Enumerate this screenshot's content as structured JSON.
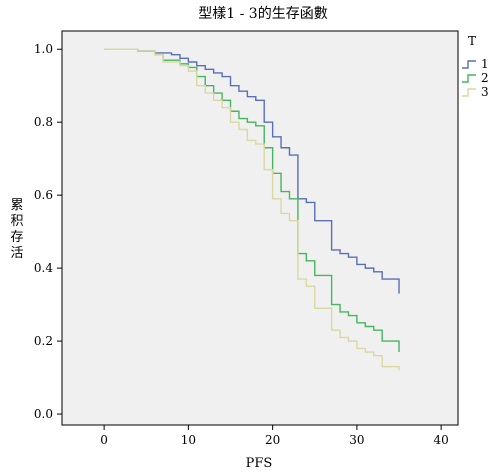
{
  "chart_data": {
    "type": "line",
    "title": "型樣1 - 3的生存函數",
    "xlabel": "PFS",
    "ylabel": "累积存活",
    "xlim": [
      -5,
      42
    ],
    "ylim": [
      -0.03,
      1.05
    ],
    "xticks": [
      "0",
      "10",
      "20",
      "30",
      "40"
    ],
    "yticks": [
      "0.0",
      "0.2",
      "0.4",
      "0.6",
      "0.8",
      "1.0"
    ],
    "xtick_values": [
      0,
      10,
      20,
      30,
      40
    ],
    "ytick_values": [
      0.0,
      0.2,
      0.4,
      0.6,
      0.8,
      1.0
    ],
    "legend": {
      "title": "T",
      "placement": "right"
    },
    "grid": false,
    "step": true,
    "series": [
      {
        "name": "1",
        "color": "#5a6fb5",
        "x": [
          0,
          4,
          6,
          8,
          9,
          10,
          11,
          12,
          13,
          14,
          15,
          16,
          17,
          18,
          19,
          20,
          21,
          22,
          23,
          24,
          25,
          27,
          28,
          29,
          30,
          31,
          32,
          33,
          35
        ],
        "y": [
          1.0,
          0.995,
          0.99,
          0.985,
          0.975,
          0.965,
          0.955,
          0.945,
          0.935,
          0.925,
          0.9,
          0.885,
          0.87,
          0.86,
          0.8,
          0.76,
          0.73,
          0.71,
          0.59,
          0.58,
          0.53,
          0.45,
          0.44,
          0.43,
          0.41,
          0.4,
          0.39,
          0.37,
          0.33
        ]
      },
      {
        "name": "2",
        "color": "#47b55f",
        "x": [
          0,
          4,
          6,
          7,
          9,
          10,
          11,
          12,
          13,
          14,
          15,
          16,
          17,
          18,
          19,
          20,
          21,
          22,
          23,
          24,
          25,
          27,
          28,
          29,
          30,
          31,
          32,
          33,
          35
        ],
        "y": [
          1.0,
          0.995,
          0.985,
          0.97,
          0.96,
          0.95,
          0.925,
          0.9,
          0.88,
          0.86,
          0.83,
          0.81,
          0.8,
          0.79,
          0.73,
          0.66,
          0.61,
          0.59,
          0.44,
          0.42,
          0.38,
          0.3,
          0.28,
          0.27,
          0.25,
          0.24,
          0.23,
          0.2,
          0.17
        ]
      },
      {
        "name": "3",
        "color": "#d9d8a3",
        "x": [
          0,
          4,
          6,
          7,
          9,
          10,
          11,
          12,
          13,
          14,
          15,
          16,
          17,
          18,
          19,
          20,
          21,
          22,
          23,
          24,
          25,
          27,
          28,
          29,
          30,
          31,
          32,
          33,
          35
        ],
        "y": [
          1.0,
          0.995,
          0.985,
          0.965,
          0.955,
          0.94,
          0.9,
          0.88,
          0.86,
          0.84,
          0.8,
          0.78,
          0.75,
          0.74,
          0.67,
          0.59,
          0.55,
          0.53,
          0.37,
          0.35,
          0.29,
          0.23,
          0.21,
          0.2,
          0.18,
          0.17,
          0.16,
          0.13,
          0.12
        ]
      }
    ]
  }
}
